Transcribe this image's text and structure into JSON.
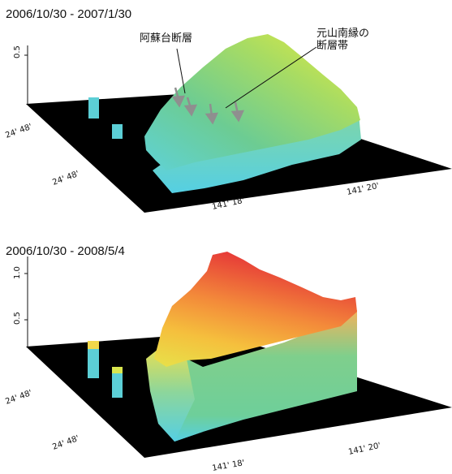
{
  "panels": [
    {
      "title": "2006/10/30 - 2007/1/30",
      "z_ticks": [
        "0.5"
      ],
      "lat_labels": [
        "24' 48'",
        "24' 48'"
      ],
      "lon_labels": [
        "141' 18'",
        "141' 20'"
      ],
      "annotations": {
        "fault_a": "阿蘇台断層",
        "fault_b_line1": "元山南縁の",
        "fault_b_line2": "断層帯"
      }
    },
    {
      "title": "2006/10/30 - 2008/5/4",
      "z_ticks": [
        "1.0",
        "0.5"
      ],
      "lat_labels": [
        "24' 48'",
        "24' 48'"
      ],
      "lon_labels": [
        "141' 18'",
        "141' 20'"
      ]
    }
  ],
  "colors": {
    "base_plane": "#000000",
    "cyan": "#5ed4e6",
    "green": "#76c98a",
    "yellow": "#d7e84a",
    "orange": "#f7a23c",
    "red": "#ea3b3b",
    "arrow": "#8f8f8f"
  }
}
